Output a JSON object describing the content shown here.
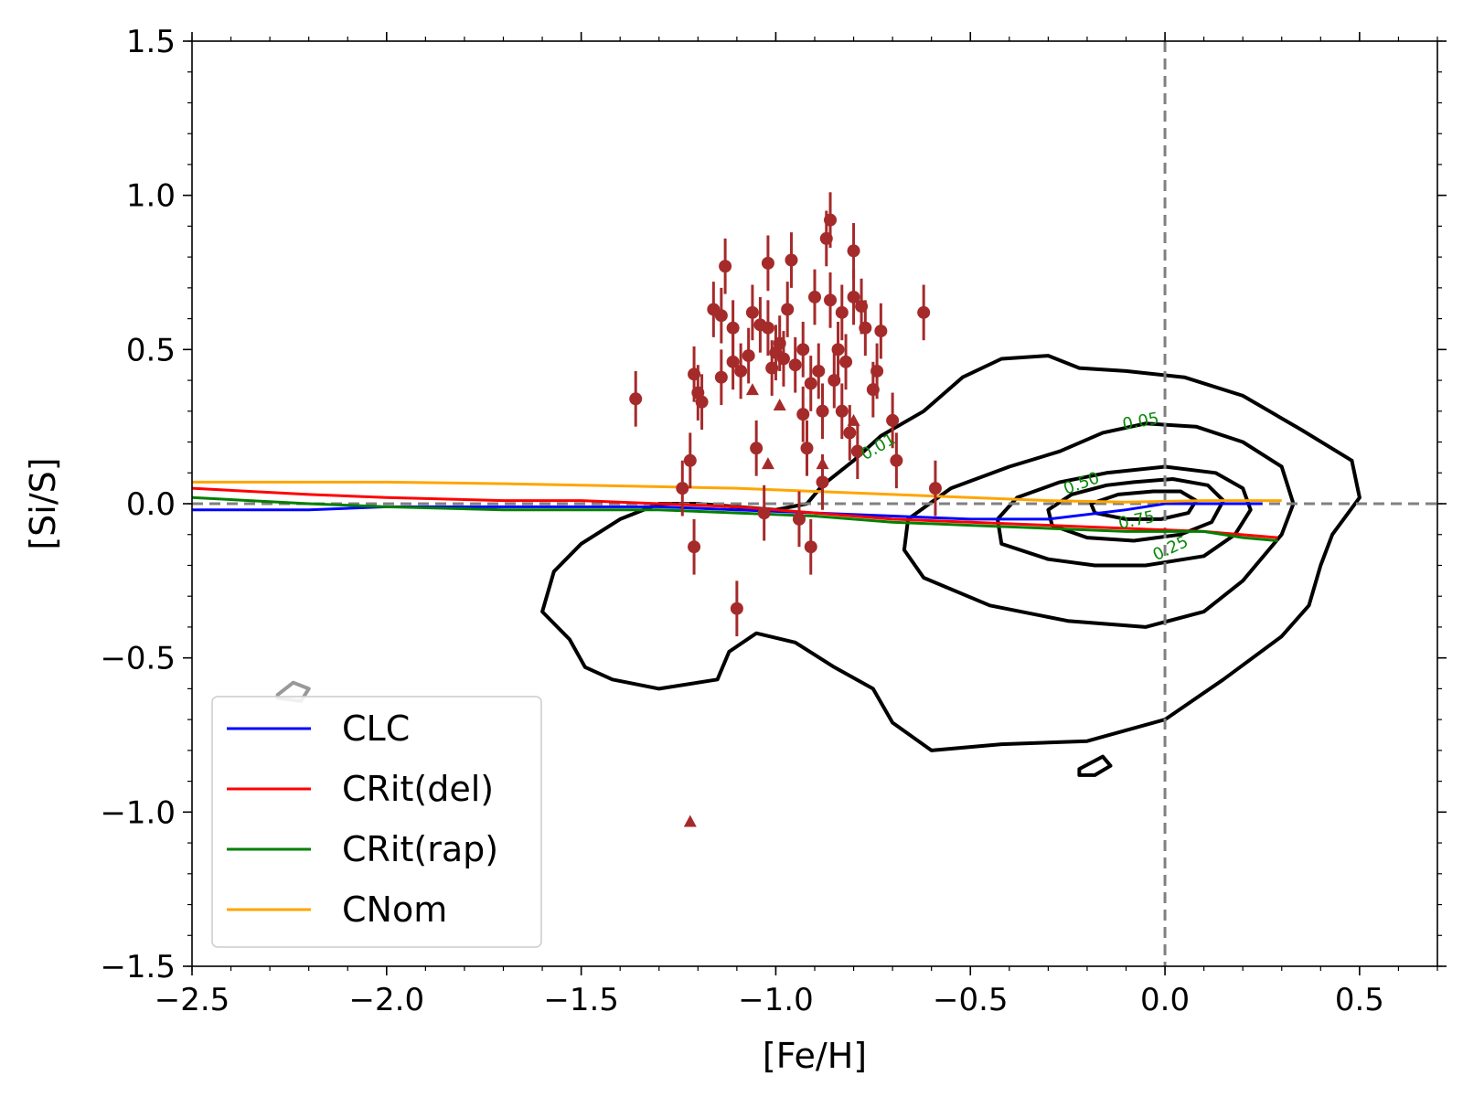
{
  "chart_data": {
    "type": "line",
    "title": "",
    "xlabel": "[Fe/H]",
    "ylabel": "[Si/S]",
    "xlim": [
      -2.5,
      0.7
    ],
    "ylim": [
      -1.5,
      1.5
    ],
    "xticks": [
      -2.5,
      -2.0,
      -1.5,
      -1.0,
      -0.5,
      0.0,
      0.5
    ],
    "xtick_labels": [
      "−2.5",
      "−2.0",
      "−1.5",
      "−1.0",
      "−0.5",
      "0.0",
      "0.5"
    ],
    "yticks": [
      -1.5,
      -1.0,
      -0.5,
      0.0,
      0.5,
      1.0,
      1.5
    ],
    "ytick_labels": [
      "−1.5",
      "−1.0",
      "−0.5",
      "0.0",
      "0.5",
      "1.0",
      "1.5"
    ],
    "reference_lines": {
      "x": 0.0,
      "y": 0.0,
      "color": "#808080",
      "style": "dashed"
    },
    "series": [
      {
        "name": "CLC",
        "color": "#0000ff",
        "x": [
          -2.5,
          -2.2,
          -2.0,
          -1.7,
          -1.5,
          -1.3,
          -1.1,
          -0.9,
          -0.7,
          -0.5,
          -0.3,
          -0.1,
          0.0,
          0.1,
          0.25
        ],
        "y": [
          -0.02,
          -0.02,
          -0.01,
          -0.01,
          -0.01,
          -0.01,
          -0.02,
          -0.03,
          -0.04,
          -0.05,
          -0.05,
          -0.02,
          0.0,
          0.0,
          0.0
        ]
      },
      {
        "name": "CRit(del)",
        "color": "#ff0000",
        "x": [
          -2.5,
          -2.2,
          -2.0,
          -1.7,
          -1.5,
          -1.3,
          -1.1,
          -0.9,
          -0.7,
          -0.5,
          -0.3,
          -0.1,
          0.1,
          0.29
        ],
        "y": [
          0.05,
          0.03,
          0.02,
          0.01,
          0.01,
          0.0,
          -0.01,
          -0.03,
          -0.05,
          -0.06,
          -0.07,
          -0.08,
          -0.09,
          -0.11
        ]
      },
      {
        "name": "CRit(rap)",
        "color": "#008000",
        "x": [
          -2.5,
          -2.2,
          -2.0,
          -1.7,
          -1.5,
          -1.3,
          -1.1,
          -0.9,
          -0.7,
          -0.5,
          -0.3,
          -0.1,
          0.1,
          0.2,
          0.29
        ],
        "y": [
          0.02,
          0.0,
          -0.01,
          -0.02,
          -0.02,
          -0.02,
          -0.03,
          -0.04,
          -0.06,
          -0.07,
          -0.08,
          -0.09,
          -0.09,
          -0.11,
          -0.12
        ]
      },
      {
        "name": "CNom",
        "color": "#ffa500",
        "x": [
          -2.5,
          -2.2,
          -2.0,
          -1.7,
          -1.5,
          -1.3,
          -1.1,
          -0.9,
          -0.7,
          -0.5,
          -0.3,
          -0.1,
          0.1,
          0.3
        ],
        "y": [
          0.07,
          0.07,
          0.07,
          0.065,
          0.06,
          0.055,
          0.05,
          0.04,
          0.03,
          0.02,
          0.01,
          0.005,
          0.01,
          0.01
        ]
      }
    ],
    "points": {
      "color": "#a52a2a",
      "marker_circle": [
        {
          "x": -1.36,
          "y": 0.34
        },
        {
          "x": -1.24,
          "y": 0.05
        },
        {
          "x": -1.22,
          "y": 0.14
        },
        {
          "x": -1.21,
          "y": 0.42
        },
        {
          "x": -1.2,
          "y": 0.36
        },
        {
          "x": -1.19,
          "y": 0.33
        },
        {
          "x": -1.21,
          "y": -0.14
        },
        {
          "x": -1.16,
          "y": 0.63
        },
        {
          "x": -1.14,
          "y": 0.61
        },
        {
          "x": -1.13,
          "y": 0.77
        },
        {
          "x": -1.14,
          "y": 0.41
        },
        {
          "x": -1.11,
          "y": 0.57
        },
        {
          "x": -1.11,
          "y": 0.46
        },
        {
          "x": -1.09,
          "y": 0.43
        },
        {
          "x": -1.07,
          "y": 0.48
        },
        {
          "x": -1.06,
          "y": 0.62
        },
        {
          "x": -1.05,
          "y": 0.18
        },
        {
          "x": -1.04,
          "y": 0.58
        },
        {
          "x": -1.02,
          "y": 0.78
        },
        {
          "x": -1.02,
          "y": 0.57
        },
        {
          "x": -1.01,
          "y": 0.44
        },
        {
          "x": -1.0,
          "y": 0.49
        },
        {
          "x": -0.99,
          "y": 0.52
        },
        {
          "x": -0.98,
          "y": 0.47
        },
        {
          "x": -0.97,
          "y": 0.63
        },
        {
          "x": -0.96,
          "y": 0.79
        },
        {
          "x": -0.95,
          "y": 0.45
        },
        {
          "x": -0.93,
          "y": 0.5
        },
        {
          "x": -0.93,
          "y": 0.29
        },
        {
          "x": -0.92,
          "y": 0.18
        },
        {
          "x": -0.91,
          "y": 0.39
        },
        {
          "x": -0.9,
          "y": 0.67
        },
        {
          "x": -0.89,
          "y": 0.43
        },
        {
          "x": -0.88,
          "y": 0.3
        },
        {
          "x": -0.88,
          "y": 0.07
        },
        {
          "x": -0.87,
          "y": 0.86
        },
        {
          "x": -0.86,
          "y": 0.92
        },
        {
          "x": -0.86,
          "y": 0.66
        },
        {
          "x": -0.85,
          "y": 0.4
        },
        {
          "x": -0.84,
          "y": 0.5
        },
        {
          "x": -0.83,
          "y": 0.62
        },
        {
          "x": -0.83,
          "y": 0.3
        },
        {
          "x": -0.82,
          "y": 0.46
        },
        {
          "x": -0.81,
          "y": 0.23
        },
        {
          "x": -0.8,
          "y": 0.67
        },
        {
          "x": -0.8,
          "y": 0.82
        },
        {
          "x": -0.79,
          "y": 0.17
        },
        {
          "x": -0.78,
          "y": 0.64
        },
        {
          "x": -0.77,
          "y": 0.57
        },
        {
          "x": -0.75,
          "y": 0.37
        },
        {
          "x": -0.74,
          "y": 0.43
        },
        {
          "x": -0.73,
          "y": 0.56
        },
        {
          "x": -0.7,
          "y": 0.27
        },
        {
          "x": -0.69,
          "y": 0.14
        },
        {
          "x": -0.62,
          "y": 0.62
        },
        {
          "x": -0.59,
          "y": 0.05
        },
        {
          "x": -1.1,
          "y": -0.34
        },
        {
          "x": -1.03,
          "y": -0.03
        },
        {
          "x": -0.94,
          "y": -0.05
        },
        {
          "x": -0.91,
          "y": -0.14
        }
      ],
      "marker_triangle": [
        {
          "x": -1.06,
          "y": 0.37
        },
        {
          "x": -1.02,
          "y": 0.13
        },
        {
          "x": -0.99,
          "y": 0.32
        },
        {
          "x": -0.88,
          "y": 0.13
        },
        {
          "x": -0.8,
          "y": 0.27
        },
        {
          "x": -1.22,
          "y": -1.03
        }
      ],
      "error": 0.09
    },
    "contours": [
      {
        "label": "0.01",
        "color": "#000000"
      },
      {
        "label": "0.05",
        "color": "#000000"
      },
      {
        "label": "0.25",
        "color": "#000000"
      },
      {
        "label": "0.50",
        "color": "#000000"
      },
      {
        "label": "0.75",
        "color": "#000000"
      }
    ],
    "contour_shapes": [
      [
        [
          -0.52,
          0.41
        ],
        [
          -0.42,
          0.47
        ],
        [
          -0.3,
          0.48
        ],
        [
          -0.22,
          0.44
        ],
        [
          -0.1,
          0.43
        ],
        [
          0.05,
          0.41
        ],
        [
          0.2,
          0.35
        ],
        [
          0.35,
          0.24
        ],
        [
          0.48,
          0.14
        ],
        [
          0.5,
          0.02
        ],
        [
          0.43,
          -0.1
        ],
        [
          0.4,
          -0.2
        ],
        [
          0.37,
          -0.33
        ],
        [
          0.3,
          -0.43
        ],
        [
          0.15,
          -0.57
        ],
        [
          0.0,
          -0.7
        ],
        [
          -0.2,
          -0.77
        ],
        [
          -0.42,
          -0.78
        ],
        [
          -0.6,
          -0.8
        ],
        [
          -0.7,
          -0.71
        ],
        [
          -0.75,
          -0.6
        ],
        [
          -0.85,
          -0.53
        ],
        [
          -0.95,
          -0.45
        ],
        [
          -1.05,
          -0.42
        ],
        [
          -1.12,
          -0.48
        ],
        [
          -1.15,
          -0.57
        ],
        [
          -1.3,
          -0.6
        ],
        [
          -1.42,
          -0.57
        ],
        [
          -1.49,
          -0.53
        ],
        [
          -1.53,
          -0.44
        ],
        [
          -1.6,
          -0.35
        ],
        [
          -1.57,
          -0.22
        ],
        [
          -1.5,
          -0.13
        ],
        [
          -1.4,
          -0.05
        ],
        [
          -1.3,
          0.0
        ],
        [
          -1.2,
          0.0
        ],
        [
          -1.1,
          -0.01
        ],
        [
          -1.0,
          -0.02
        ],
        [
          -0.92,
          0.0
        ],
        [
          -0.88,
          0.06
        ],
        [
          -0.8,
          0.14
        ],
        [
          -0.73,
          0.22
        ],
        [
          -0.62,
          0.3
        ],
        [
          -0.52,
          0.41
        ]
      ],
      [
        [
          -0.16,
          0.23
        ],
        [
          -0.05,
          0.26
        ],
        [
          0.08,
          0.25
        ],
        [
          0.2,
          0.2
        ],
        [
          0.3,
          0.12
        ],
        [
          0.33,
          0.0
        ],
        [
          0.3,
          -0.1
        ],
        [
          0.2,
          -0.25
        ],
        [
          0.1,
          -0.35
        ],
        [
          -0.05,
          -0.4
        ],
        [
          -0.25,
          -0.38
        ],
        [
          -0.45,
          -0.33
        ],
        [
          -0.62,
          -0.24
        ],
        [
          -0.67,
          -0.15
        ],
        [
          -0.66,
          -0.05
        ],
        [
          -0.55,
          0.05
        ],
        [
          -0.4,
          0.12
        ],
        [
          -0.27,
          0.17
        ],
        [
          -0.16,
          0.23
        ]
      ],
      [
        [
          -0.15,
          0.1
        ],
        [
          0.0,
          0.12
        ],
        [
          0.13,
          0.1
        ],
        [
          0.2,
          0.05
        ],
        [
          0.22,
          -0.02
        ],
        [
          0.18,
          -0.1
        ],
        [
          0.1,
          -0.17
        ],
        [
          -0.05,
          -0.2
        ],
        [
          -0.18,
          -0.2
        ],
        [
          -0.3,
          -0.18
        ],
        [
          -0.42,
          -0.13
        ],
        [
          -0.43,
          -0.05
        ],
        [
          -0.38,
          0.02
        ],
        [
          -0.27,
          0.07
        ],
        [
          -0.15,
          0.1
        ]
      ],
      [
        [
          -0.08,
          0.07
        ],
        [
          0.02,
          0.08
        ],
        [
          0.11,
          0.06
        ],
        [
          0.15,
          0.01
        ],
        [
          0.12,
          -0.06
        ],
        [
          0.04,
          -0.1
        ],
        [
          -0.08,
          -0.12
        ],
        [
          -0.2,
          -0.11
        ],
        [
          -0.29,
          -0.07
        ],
        [
          -0.3,
          -0.02
        ],
        [
          -0.24,
          0.03
        ],
        [
          -0.15,
          0.06
        ],
        [
          -0.08,
          0.07
        ]
      ],
      [
        [
          -0.03,
          0.04
        ],
        [
          0.04,
          0.04
        ],
        [
          0.08,
          0.01
        ],
        [
          0.06,
          -0.03
        ],
        [
          -0.01,
          -0.05
        ],
        [
          -0.1,
          -0.05
        ],
        [
          -0.18,
          -0.03
        ],
        [
          -0.19,
          0.0
        ],
        [
          -0.12,
          0.03
        ],
        [
          -0.03,
          0.04
        ]
      ],
      [
        [
          -2.28,
          -0.62
        ],
        [
          -2.24,
          -0.58
        ],
        [
          -2.2,
          -0.6
        ],
        [
          -2.22,
          -0.64
        ],
        [
          -2.28,
          -0.63
        ],
        [
          -2.28,
          -0.62
        ]
      ],
      [
        [
          -0.22,
          -0.86
        ],
        [
          -0.16,
          -0.82
        ],
        [
          -0.14,
          -0.85
        ],
        [
          -0.18,
          -0.88
        ],
        [
          -0.22,
          -0.88
        ],
        [
          -0.22,
          -0.86
        ]
      ]
    ],
    "contour_labels": [
      {
        "text": "0.01",
        "x": -0.73,
        "y": 0.17,
        "angle": -30
      },
      {
        "text": "0.05",
        "x": -0.06,
        "y": 0.25,
        "angle": -10
      },
      {
        "text": "0.50",
        "x": -0.21,
        "y": 0.05,
        "angle": -20
      },
      {
        "text": "0.75",
        "x": -0.07,
        "y": -0.07,
        "angle": -12
      },
      {
        "text": "0.25",
        "x": 0.02,
        "y": -0.16,
        "angle": -25
      }
    ],
    "legend": {
      "position": "lower-left",
      "entries": [
        {
          "label": "CLC",
          "color": "#0000ff"
        },
        {
          "label": "CRit(del)",
          "color": "#ff0000"
        },
        {
          "label": "CRit(rap)",
          "color": "#008000"
        },
        {
          "label": "CNom",
          "color": "#ffa500"
        }
      ]
    }
  }
}
